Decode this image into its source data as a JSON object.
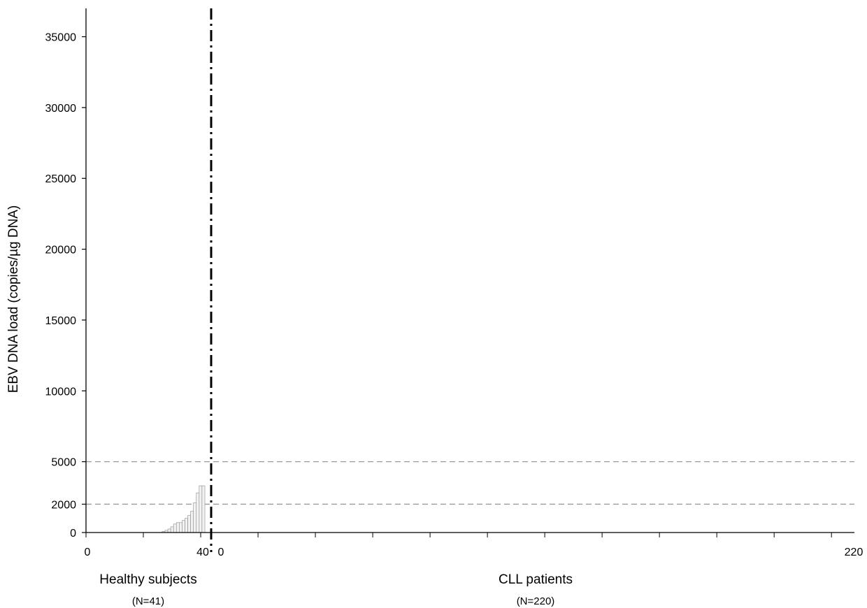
{
  "chart_data": {
    "type": "bar",
    "ylabel": "EBV DNA load (copies/µg DNA)",
    "ylim": [
      0,
      37000
    ],
    "yticks": [
      0,
      2000,
      5000,
      10000,
      15000,
      20000,
      25000,
      30000,
      35000
    ],
    "reference_lines": [
      2000,
      5000
    ],
    "grid": false,
    "groups": [
      {
        "name": "Healthy subjects",
        "n_label": "(N=41)",
        "tick_start_label": "0",
        "tick_end_label": "40",
        "values": [
          0,
          0,
          0,
          0,
          0,
          0,
          0,
          0,
          0,
          0,
          0,
          0,
          0,
          0,
          0,
          0,
          0,
          0,
          0,
          0,
          0,
          0,
          0,
          0,
          0,
          0,
          80,
          150,
          250,
          400,
          600,
          700,
          700,
          850,
          1000,
          1200,
          1500,
          2100,
          2800,
          3300,
          3300
        ]
      },
      {
        "name": "CLL patients",
        "n_label": "(N=220)",
        "tick_start_label": "0",
        "tick_end_label": "220",
        "values": [
          0,
          0,
          0,
          0,
          0,
          0,
          0,
          0,
          0,
          0,
          0,
          0,
          0,
          0,
          0,
          0,
          0,
          0,
          0,
          0,
          0,
          0,
          0,
          0,
          0,
          0,
          0,
          0,
          0,
          0,
          0,
          0,
          0,
          0,
          0,
          0,
          0,
          0,
          0,
          0,
          0,
          0,
          0,
          0,
          0,
          0,
          0,
          0,
          0,
          0,
          0,
          0,
          0,
          0,
          0,
          0,
          0,
          0,
          0,
          0,
          0,
          0,
          0,
          0,
          0,
          0,
          0,
          0,
          0,
          0,
          0,
          0,
          0,
          0,
          0,
          0,
          0,
          0,
          0,
          0,
          0,
          0,
          0,
          0,
          0,
          0,
          0,
          0,
          0,
          0,
          0,
          0,
          0,
          0,
          0,
          0,
          0,
          0,
          0,
          0,
          0,
          0,
          0,
          0,
          0,
          0,
          0,
          0,
          0,
          0,
          0,
          0,
          0,
          0,
          0,
          0,
          0,
          0,
          0,
          0,
          0,
          0,
          0,
          0,
          0,
          0,
          0,
          0,
          0,
          0,
          0,
          0,
          0,
          0,
          0,
          0,
          0,
          0,
          0,
          0,
          0,
          0,
          0,
          0,
          0,
          0,
          0,
          0,
          0,
          0,
          0,
          0,
          0,
          0,
          0,
          0,
          0,
          0,
          0,
          0,
          0,
          0,
          0,
          0,
          0,
          0,
          0,
          0,
          0,
          0,
          0,
          0,
          0,
          0,
          0,
          0,
          0,
          0,
          0,
          0,
          0,
          0,
          0,
          0,
          0,
          0,
          0,
          0,
          0,
          0,
          0,
          0,
          0,
          0,
          0,
          0,
          0,
          0,
          0,
          0,
          0,
          0,
          0,
          0,
          0,
          0,
          0,
          0,
          0,
          0,
          0,
          0,
          0,
          0,
          0,
          0,
          0,
          0,
          0,
          0,
          0
        ]
      }
    ]
  }
}
